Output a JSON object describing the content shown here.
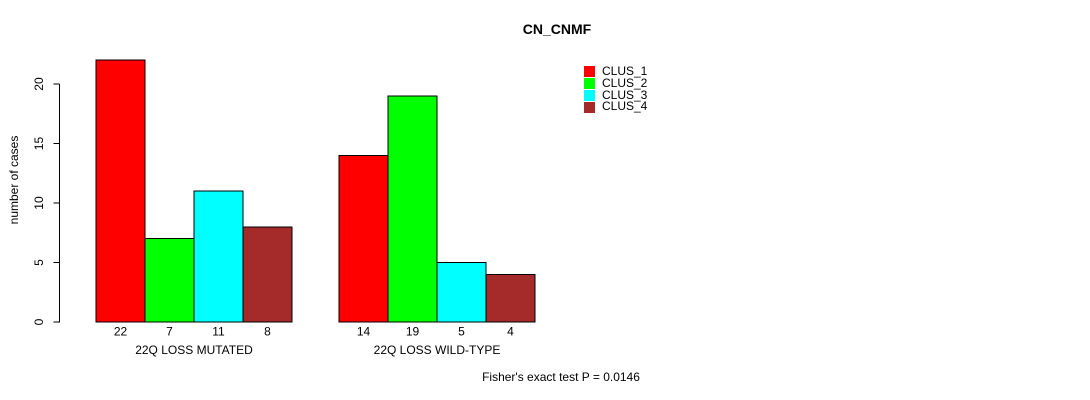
{
  "chart_data": {
    "type": "bar",
    "title": "CN_CNMF",
    "xlabel": "",
    "ylabel": "number of cases",
    "categories": [
      "22Q LOSS MUTATED",
      "22Q LOSS WILD-TYPE"
    ],
    "series": [
      {
        "name": "CLUS_1",
        "color": "#ff0000",
        "values": [
          22,
          14
        ]
      },
      {
        "name": "CLUS_2",
        "color": "#00ff00",
        "values": [
          7,
          19
        ]
      },
      {
        "name": "CLUS_3",
        "color": "#00ffff",
        "values": [
          11,
          5
        ]
      },
      {
        "name": "CLUS_4",
        "color": "#a52a2a",
        "values": [
          8,
          4
        ]
      }
    ],
    "yticks": [
      0,
      5,
      10,
      15,
      20
    ],
    "ylim": [
      0,
      22
    ],
    "grid": false,
    "bar_border_color": "#000000",
    "show_value_labels": true,
    "legend": {
      "position": "top-right",
      "entries": [
        "CLUS_1",
        "CLUS_2",
        "CLUS_3",
        "CLUS_4"
      ]
    },
    "annotation": "Fisher's exact test P = 0.0146"
  }
}
